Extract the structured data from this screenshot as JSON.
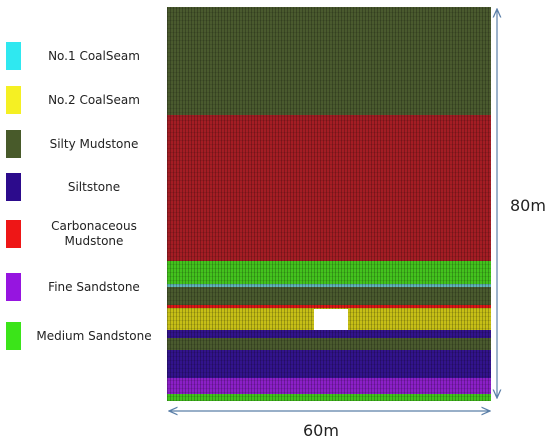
{
  "legend": [
    {
      "label": "No.1 CoalSeam",
      "color": "#2fe8f0"
    },
    {
      "label": "No.2 CoalSeam",
      "color": "#f5f023"
    },
    {
      "label": "Silty Mudstone",
      "color": "#485a2a"
    },
    {
      "label": "Siltstone",
      "color": "#2c0b8c"
    },
    {
      "label": "Carbonaceous\nMudstone",
      "color": "#ee1616"
    },
    {
      "label": "Fine Sandstone",
      "color": "#9615e0"
    },
    {
      "label": "Medium Sandstone",
      "color": "#3be419"
    }
  ],
  "layer_colors": {
    "silty_mudstone": "#4a5a2e",
    "carbonaceous_mudstone": "#a41d24",
    "medium_sandstone": "#43c21d",
    "no1_coalseam": "#5fb3b7",
    "no2_coalseam": "#c6bf16",
    "siltstone": "#32138c",
    "fine_sandstone": "#8b1fc7",
    "red_thin": "#d91717",
    "cavity": "#ffffff"
  },
  "dimensions": {
    "height_label": "80m",
    "width_label": "60m"
  }
}
